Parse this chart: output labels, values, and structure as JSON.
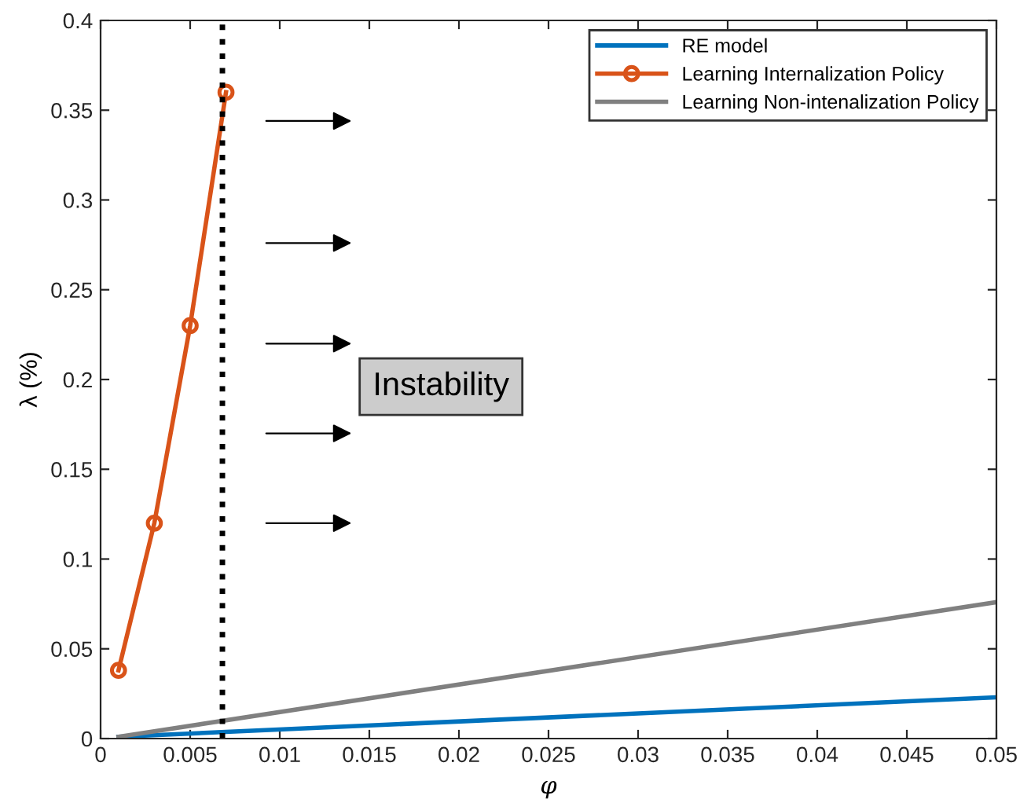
{
  "chart_data": {
    "type": "line",
    "xlabel": "φ",
    "ylabel": "λ (%)",
    "xlim": [
      0,
      0.05
    ],
    "ylim": [
      0,
      0.4
    ],
    "xticks": [
      0,
      0.005,
      0.01,
      0.015,
      0.02,
      0.025,
      0.03,
      0.035,
      0.04,
      0.045,
      0.05
    ],
    "yticks": [
      0,
      0.05,
      0.1,
      0.15,
      0.2,
      0.25,
      0.3,
      0.35,
      0.4
    ],
    "series": [
      {
        "name": "RE model",
        "color": "#0072bd",
        "x": [
          0.001,
          0.05
        ],
        "values": [
          0.001,
          0.023
        ],
        "marker": "none"
      },
      {
        "name": "Learning Internalization Policy",
        "color": "#d95319",
        "x": [
          0.001,
          0.003,
          0.005,
          0.007
        ],
        "values": [
          0.038,
          0.12,
          0.23,
          0.36
        ],
        "marker": "circle"
      },
      {
        "name": "Learning Non-intenalization Policy",
        "color": "#808080",
        "x": [
          0.001,
          0.05
        ],
        "values": [
          0.001,
          0.076
        ],
        "marker": "none"
      }
    ],
    "ref_lines": [
      {
        "axis": "x",
        "value": 0.0068,
        "color": "#000000",
        "line_style": "dotted"
      }
    ],
    "annotations": [
      "Instability"
    ],
    "legend": "top right",
    "grid": false
  }
}
